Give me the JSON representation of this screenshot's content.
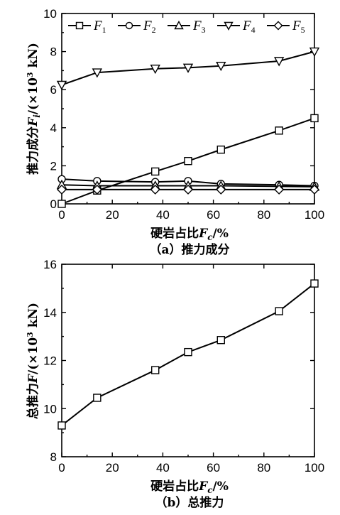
{
  "chart_data": [
    {
      "type": "line",
      "x": [
        0,
        14,
        37,
        50,
        63,
        86,
        100
      ],
      "series": [
        {
          "name": "F1",
          "marker": "square",
          "values": [
            0.0,
            0.7,
            1.7,
            2.25,
            2.85,
            3.85,
            4.5
          ]
        },
        {
          "name": "F2",
          "marker": "circle",
          "values": [
            1.3,
            1.2,
            1.15,
            1.2,
            1.05,
            1.0,
            0.95
          ]
        },
        {
          "name": "F3",
          "marker": "triangle-up",
          "values": [
            1.0,
            0.95,
            0.95,
            0.95,
            0.95,
            0.92,
            0.9
          ]
        },
        {
          "name": "F4",
          "marker": "triangle-down",
          "values": [
            6.25,
            6.9,
            7.1,
            7.15,
            7.25,
            7.5,
            8.0
          ]
        },
        {
          "name": "F5",
          "marker": "diamond",
          "values": [
            0.75,
            0.75,
            0.75,
            0.75,
            0.75,
            0.75,
            0.75
          ]
        }
      ],
      "xlim": [
        0,
        100
      ],
      "ylim": [
        0,
        10
      ],
      "xticks": [
        "0",
        "20",
        "40",
        "60",
        "80",
        "100"
      ],
      "yticks": [
        "0",
        "2",
        "4",
        "6",
        "8",
        "10"
      ],
      "ylabel": "推力成分F_i/(×10³ kN)",
      "xlabel": "硬岩占比F_c/%",
      "caption": "（a）推力成分",
      "legend": "top"
    },
    {
      "type": "line",
      "x": [
        0,
        14,
        37,
        50,
        63,
        86,
        100
      ],
      "series": [
        {
          "name": "",
          "marker": "square",
          "values": [
            9.3,
            10.45,
            11.6,
            12.35,
            12.85,
            14.05,
            15.2
          ]
        }
      ],
      "xlim": [
        0,
        100
      ],
      "ylim": [
        8,
        16
      ],
      "xticks": [
        "0",
        "20",
        "40",
        "60",
        "80",
        "100"
      ],
      "yticks": [
        "8",
        "10",
        "12",
        "14",
        "16"
      ],
      "ylabel": "总推力F/(×10³ kN)",
      "xlabel": "硬岩占比F_c/%",
      "caption": "（b）总推力"
    }
  ],
  "labels": {
    "a": {
      "ylabel_main": "推力成分",
      "ylabel_var": "F",
      "ylabel_sub": "i",
      "ylabel_units": "/(×10",
      "ylabel_sup": "3",
      "ylabel_end": " kN)",
      "xlabel_main": "硬岩占比",
      "xlabel_var": "F",
      "xlabel_sub": "c",
      "xlabel_end": "/%",
      "caption": "（a）推力成分"
    },
    "b": {
      "ylabel_main": "总推力",
      "ylabel_var": "F",
      "ylabel_units": "/(×10",
      "ylabel_sup": "3",
      "ylabel_end": " kN)",
      "xlabel_main": "硬岩占比",
      "xlabel_var": "F",
      "xlabel_sub": "c",
      "xlabel_end": "/%",
      "caption": "（b）总推力"
    },
    "legend": [
      {
        "var": "F",
        "sub": "1"
      },
      {
        "var": "F",
        "sub": "2"
      },
      {
        "var": "F",
        "sub": "3"
      },
      {
        "var": "F",
        "sub": "4"
      },
      {
        "var": "F",
        "sub": "5"
      }
    ]
  }
}
